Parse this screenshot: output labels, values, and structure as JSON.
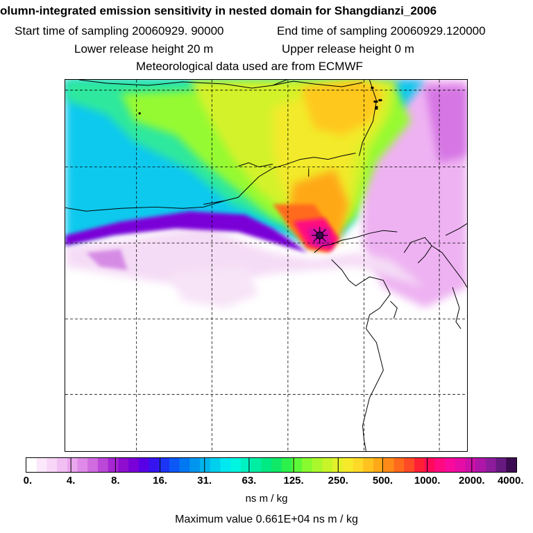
{
  "title": "olumn-integrated emission sensitivity in nested domain for Shangdianzi_2006",
  "sampling": {
    "start_label": "Start time of sampling 20060929. 90000",
    "end_label": "End time of sampling 20060929.120000"
  },
  "release": {
    "lower_label": "Lower release height   20 m",
    "upper_label": "Upper release height    0 m"
  },
  "meteo_label": "Meteorological data used are from ECMWF",
  "colorbar": {
    "ticks": [
      "0.",
      "4.",
      "8.",
      "16.",
      "31.",
      "63.",
      "125.",
      "250.",
      "500.",
      "1000.",
      "2000.",
      "4000."
    ],
    "colors": [
      "#ffffff",
      "#fbe8fb",
      "#f7d6f7",
      "#f2bff3",
      "#eaa6ee",
      "#df8ae8",
      "#d06be0",
      "#bb48d8",
      "#a526d2",
      "#8e0dcf",
      "#7a00d8",
      "#5800e6",
      "#3614f0",
      "#1c34f6",
      "#0c58f6",
      "#0078f2",
      "#0096ee",
      "#00b4ec",
      "#00cfee",
      "#00e8f0",
      "#00f5e0",
      "#00f2c2",
      "#00eea4",
      "#00ea84",
      "#10e868",
      "#2cf04c",
      "#5cf838",
      "#88fa30",
      "#aaf82c",
      "#c8f42a",
      "#e4f02a",
      "#f6ea2a",
      "#ffd928",
      "#ffc21e",
      "#ffa818",
      "#ff8a18",
      "#ff6a1c",
      "#ff4a26",
      "#ff2036",
      "#ff0a5a",
      "#ff0a80",
      "#f80a9c",
      "#e60ca6",
      "#cc10a8",
      "#ae16a8",
      "#8c1c9c",
      "#661a80",
      "#3c0a50"
    ],
    "unit_label": "ns m / kg"
  },
  "maximum_label": "Maximum value  0.661E+04 ns m / kg"
}
